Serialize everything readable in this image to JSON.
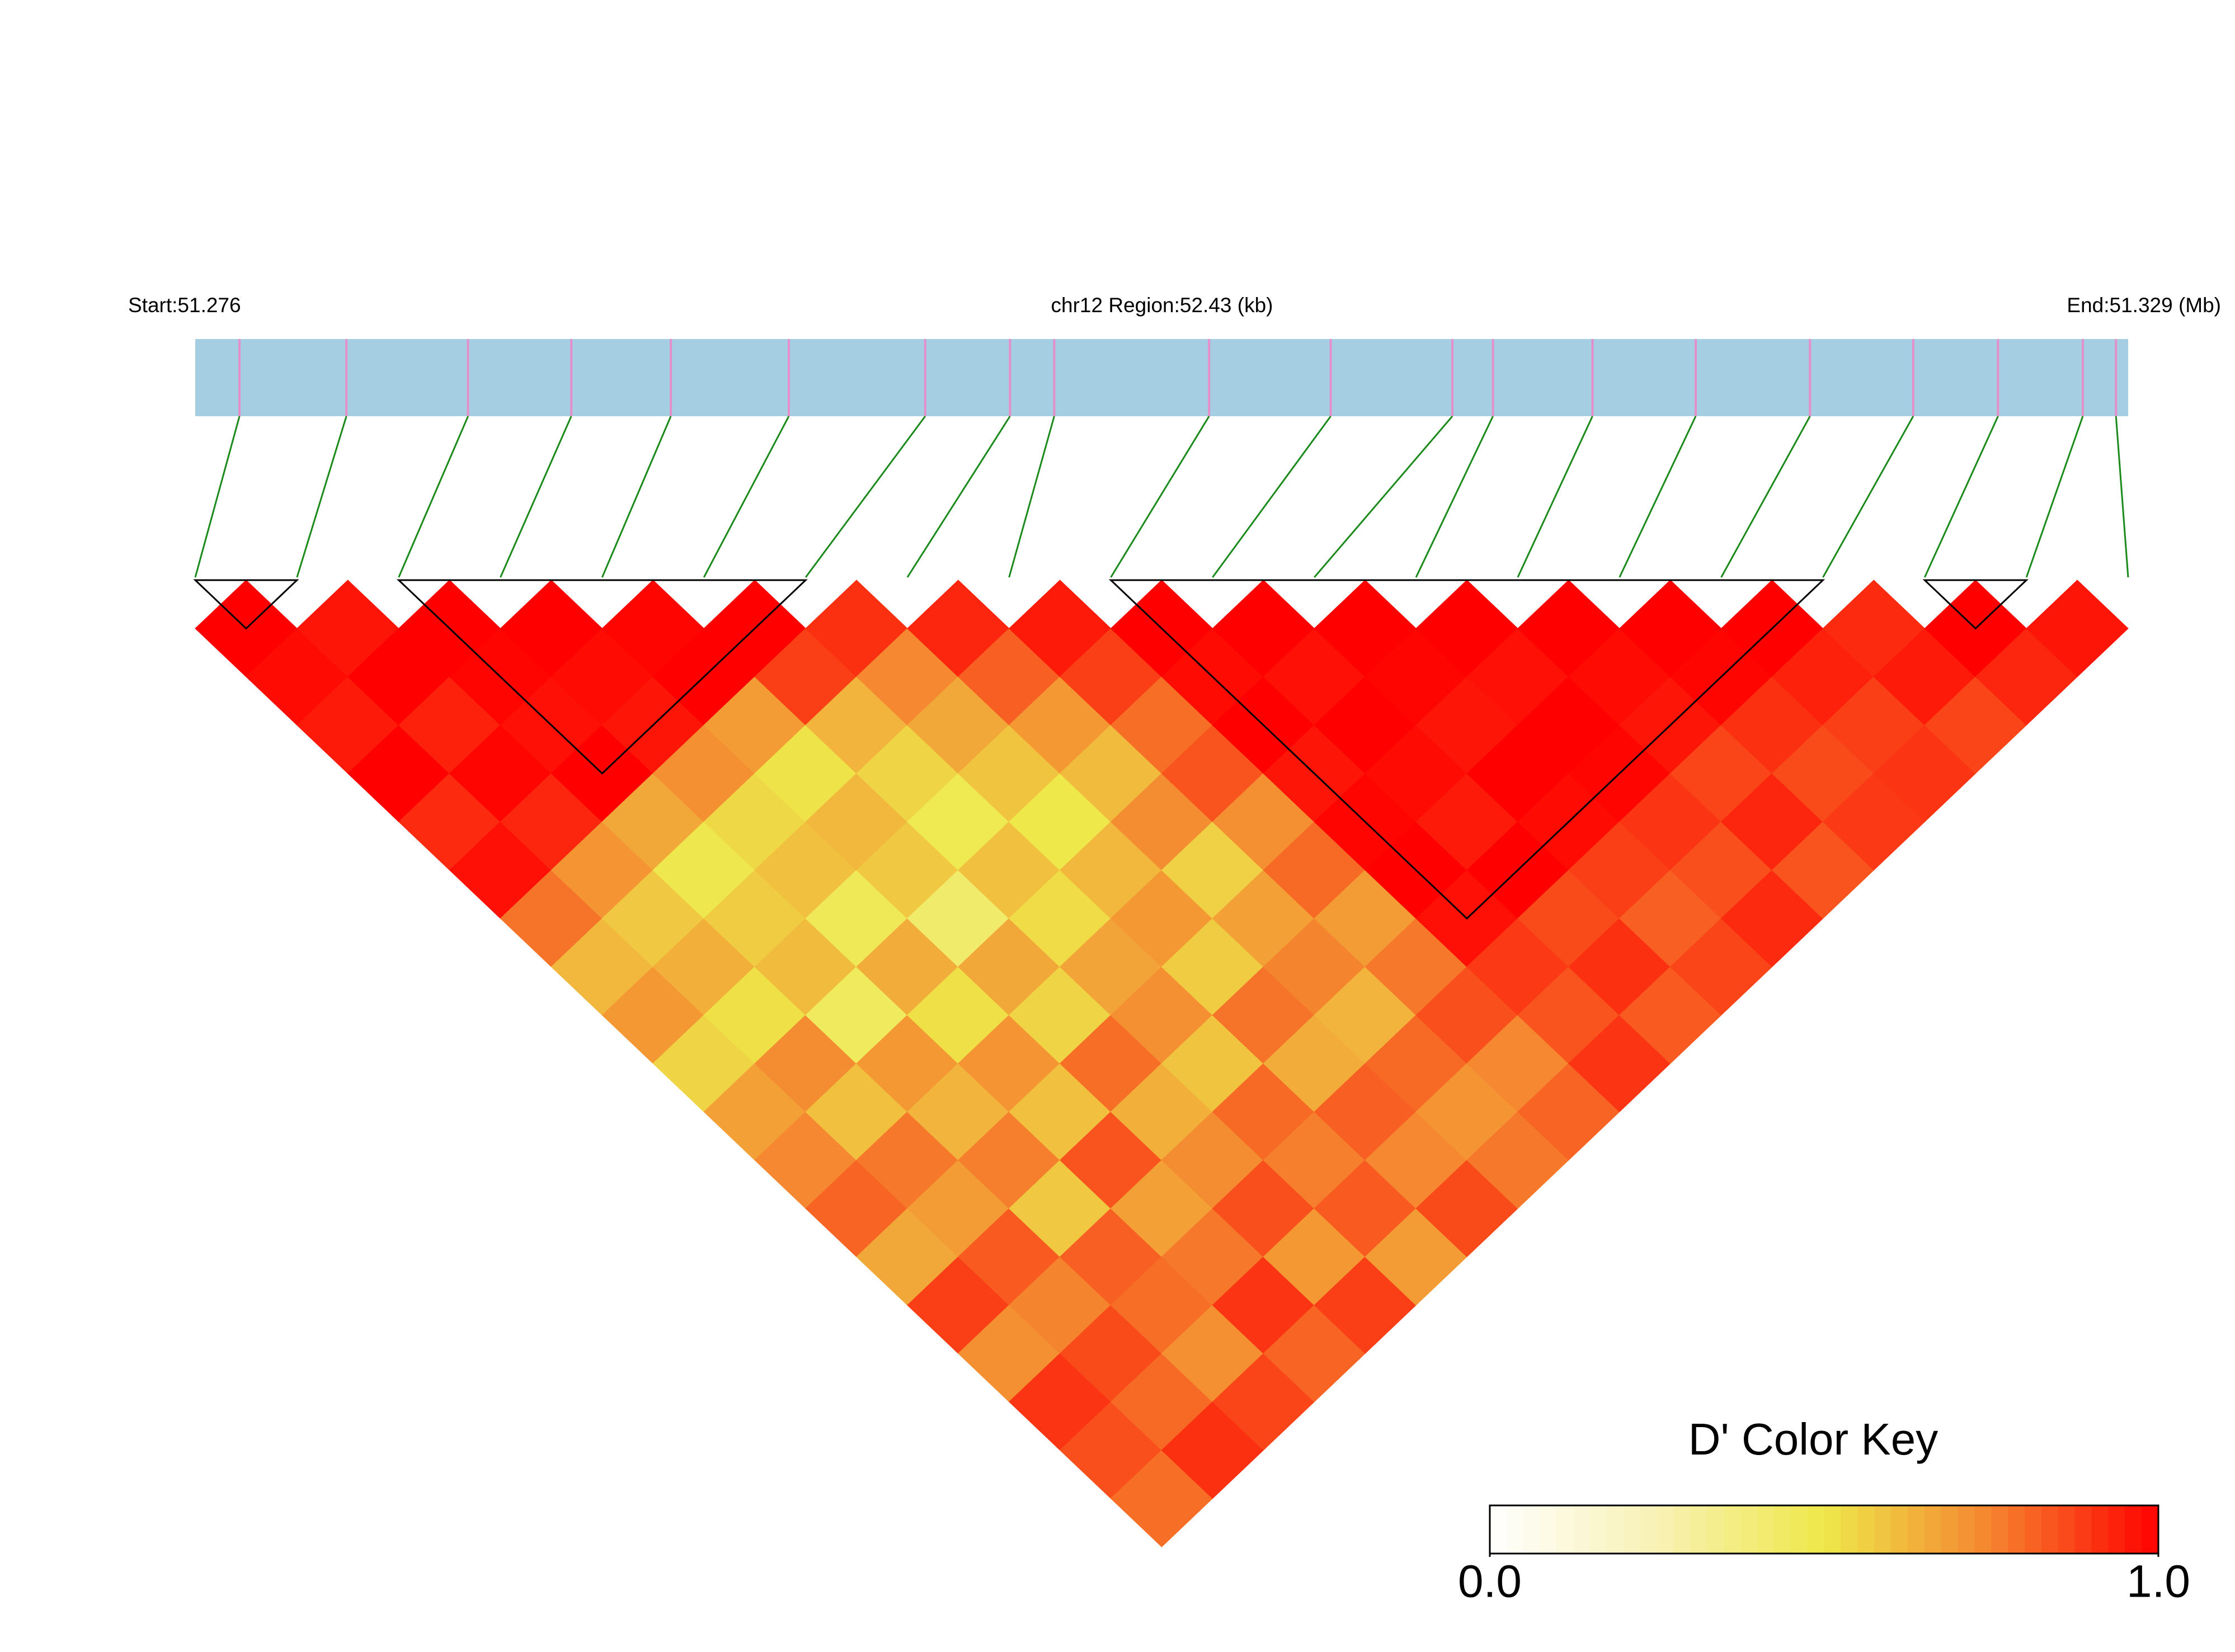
{
  "chart_data": {
    "type": "ld_heatmap",
    "start_label": "Start:51.276",
    "title": "chr12 Region:52.43 (kb)",
    "end_label": "End:51.329 (Mb)",
    "xlim": [
      51.276,
      51.32843
    ],
    "snp_positions": [
      51.2772,
      51.2801,
      51.2834,
      51.2862,
      51.2889,
      51.2921,
      51.2958,
      51.2981,
      51.2993,
      51.3035,
      51.3068,
      51.3101,
      51.3112,
      51.3139,
      51.3167,
      51.3198,
      51.3226,
      51.3249,
      51.3272,
      51.3281
    ],
    "dprime": [
      [
        1.0,
        0.98,
        0.95,
        1.0,
        0.92,
        0.97,
        0.78,
        0.62,
        0.7,
        0.55,
        0.68,
        0.74,
        0.81,
        0.66,
        0.88,
        0.72,
        0.9,
        0.85,
        0.79
      ],
      [
        0.96,
        1.0,
        0.94,
        0.99,
        0.93,
        0.71,
        0.58,
        0.64,
        0.52,
        0.73,
        0.6,
        0.77,
        0.69,
        0.83,
        0.75,
        0.86,
        0.8,
        0.91
      ],
      [
        1.0,
        0.99,
        0.97,
        1.0,
        0.66,
        0.49,
        0.57,
        0.61,
        0.45,
        0.7,
        0.63,
        0.76,
        0.58,
        0.82,
        0.79,
        0.72,
        0.87
      ],
      [
        1.0,
        0.98,
        0.96,
        0.72,
        0.54,
        0.6,
        0.47,
        0.65,
        0.52,
        0.71,
        0.6,
        0.84,
        0.68,
        0.77,
        0.9,
        0.81
      ],
      [
        0.99,
        1.0,
        0.69,
        0.51,
        0.62,
        0.58,
        0.42,
        0.66,
        0.55,
        0.79,
        0.64,
        0.73,
        0.85,
        0.7,
        0.88
      ],
      [
        1.0,
        0.88,
        0.63,
        0.55,
        0.48,
        0.6,
        0.53,
        0.67,
        0.72,
        0.59,
        0.8,
        0.76,
        0.83,
        0.69
      ],
      [
        0.91,
        0.74,
        0.66,
        0.59,
        0.5,
        0.62,
        0.7,
        0.57,
        0.78,
        0.65,
        0.82,
        0.74,
        0.86
      ],
      [
        0.93,
        0.82,
        0.7,
        0.61,
        0.73,
        0.56,
        0.68,
        0.75,
        0.63,
        0.8,
        0.71,
        0.77
      ],
      [
        0.95,
        0.88,
        0.79,
        0.84,
        0.72,
        0.8,
        0.69,
        0.77,
        0.85,
        0.74,
        0.81
      ],
      [
        1.0,
        0.98,
        1.0,
        0.96,
        0.99,
        1.0,
        0.97,
        0.89,
        0.84,
        0.9
      ],
      [
        1.0,
        0.97,
        1.0,
        0.98,
        0.95,
        1.0,
        0.86,
        0.91,
        0.83
      ],
      [
        1.0,
        0.99,
        0.96,
        1.0,
        0.98,
        0.88,
        0.82,
        0.87
      ],
      [
        1.0,
        0.97,
        1.0,
        0.99,
        0.9,
        0.85,
        0.92
      ],
      [
        1.0,
        0.98,
        0.96,
        0.87,
        0.93,
        0.84
      ],
      [
        1.0,
        0.99,
        0.91,
        0.86,
        0.89
      ],
      [
        1.0,
        0.94,
        0.88,
        0.9
      ],
      [
        0.92,
        0.95,
        0.87
      ],
      [
        1.0,
        0.93
      ],
      [
        0.96
      ]
    ],
    "blocks": [
      [
        0,
        1
      ],
      [
        2,
        6
      ],
      [
        9,
        16
      ],
      [
        17,
        18
      ]
    ],
    "bar_color": "#a6cee3",
    "snp_line_color": "#e58fc8",
    "connector_color": "#1a8a1a",
    "colorscale": [
      "#ffffff",
      "#f8f1b4",
      "#eee84a",
      "#f5842f",
      "#ff0000"
    ],
    "key_title": "D' Color Key",
    "clim": [
      0,
      1
    ],
    "cticks": [
      {
        "value": 0,
        "label": "0.0"
      },
      {
        "value": 1,
        "label": "1.0"
      }
    ]
  }
}
